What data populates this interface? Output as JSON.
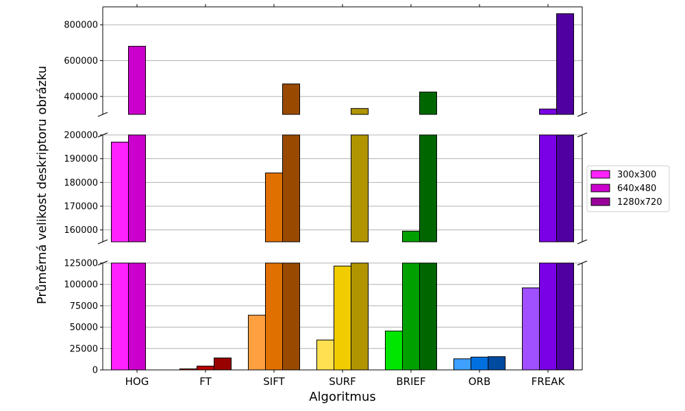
{
  "chart_data": {
    "type": "bar",
    "xlabel": "Algoritmus",
    "ylabel": "Průměrná velikost deskriptoru obrázku",
    "categories": [
      "HOG",
      "FT",
      "SIFT",
      "SURF",
      "BRIEF",
      "ORB",
      "FREAK"
    ],
    "series": [
      {
        "name": "300x300",
        "values": [
          197000,
          1200,
          64000,
          35000,
          45500,
          13000,
          96000
        ]
      },
      {
        "name": "640x480",
        "values": [
          680000,
          4500,
          184000,
          121500,
          159500,
          15000,
          330000
        ]
      },
      {
        "name": "1280x720",
        "values": [
          null,
          14000,
          470000,
          333000,
          425000,
          15500,
          862000
        ]
      }
    ],
    "bar_colors": [
      [
        "#ff22ff",
        "#dd0000",
        "#ffa040",
        "#ffe050",
        "#00e600",
        "#3fa0ff",
        "#a050ff"
      ],
      [
        "#cc00cc",
        "#bb0000",
        "#e07000",
        "#f0cc00",
        "#00a000",
        "#0070e0",
        "#7a00e6"
      ],
      [
        "#990099",
        "#990000",
        "#9a4a00",
        "#b09400",
        "#006600",
        "#004aa0",
        "#5000a0"
      ]
    ],
    "broken_axis": true,
    "panels": [
      {
        "ylim": [
          300000,
          900000
        ],
        "yticks": [
          400000,
          600000,
          800000
        ]
      },
      {
        "ylim": [
          155000,
          200000
        ],
        "yticks": [
          160000,
          170000,
          180000,
          190000,
          200000
        ]
      },
      {
        "ylim": [
          0,
          125000
        ],
        "yticks": [
          0,
          25000,
          50000,
          75000,
          100000,
          125000
        ]
      }
    ],
    "grid": "horizontal",
    "legend_position": "right"
  }
}
